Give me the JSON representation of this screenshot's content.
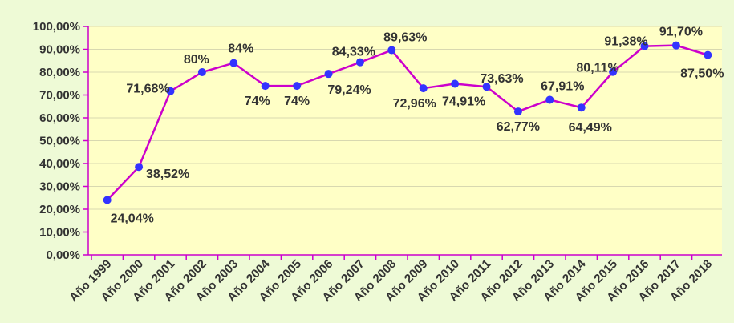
{
  "chart_data": {
    "type": "line",
    "categories": [
      "Año 1999",
      "Año 2000",
      "Año 2001",
      "Año 2002",
      "Año 2003",
      "Año 2004",
      "Año 2005",
      "Año 2006",
      "Año 2007",
      "Año 2008",
      "Año 2009",
      "Año 2010",
      "Año 2011",
      "Año 2012",
      "Año 2013",
      "Año 2014",
      "Año 2015",
      "Año 2016",
      "Año 2017",
      "Año 2018"
    ],
    "series": [
      {
        "color": "#cc00cc",
        "marker_color": "#3333ff",
        "values": [
          24.04,
          38.52,
          71.68,
          80,
          84,
          74,
          74,
          79.24,
          84.33,
          89.63,
          72.96,
          74.91,
          73.63,
          62.77,
          67.91,
          64.49,
          80.11,
          91.38,
          91.7,
          87.5
        ],
        "value_labels": [
          "24,04%",
          "38,52%",
          "71,68%",
          "80%",
          "84%",
          "74%",
          "74%",
          "79,24%",
          "84,33%",
          "89,63%",
          "72,96%",
          "74,91%",
          "73,63%",
          "62,77%",
          "67,91%",
          "64,49%",
          "80,11%",
          "91,38%",
          "91,70%",
          "87,50%"
        ]
      }
    ],
    "ylim": [
      0,
      100
    ],
    "yticks": [
      {
        "value": 0,
        "label": "0,00%"
      },
      {
        "value": 10,
        "label": "10,00%"
      },
      {
        "value": 20,
        "label": "20,00%"
      },
      {
        "value": 30,
        "label": "30,00%"
      },
      {
        "value": 40,
        "label": "40,00%"
      },
      {
        "value": 50,
        "label": "50,00%"
      },
      {
        "value": 60,
        "label": "60,00%"
      },
      {
        "value": 70,
        "label": "70,00%"
      },
      {
        "value": 80,
        "label": "80,00%"
      },
      {
        "value": 90,
        "label": "90,00%"
      },
      {
        "value": 100,
        "label": "100,00%"
      }
    ],
    "grid": true
  }
}
